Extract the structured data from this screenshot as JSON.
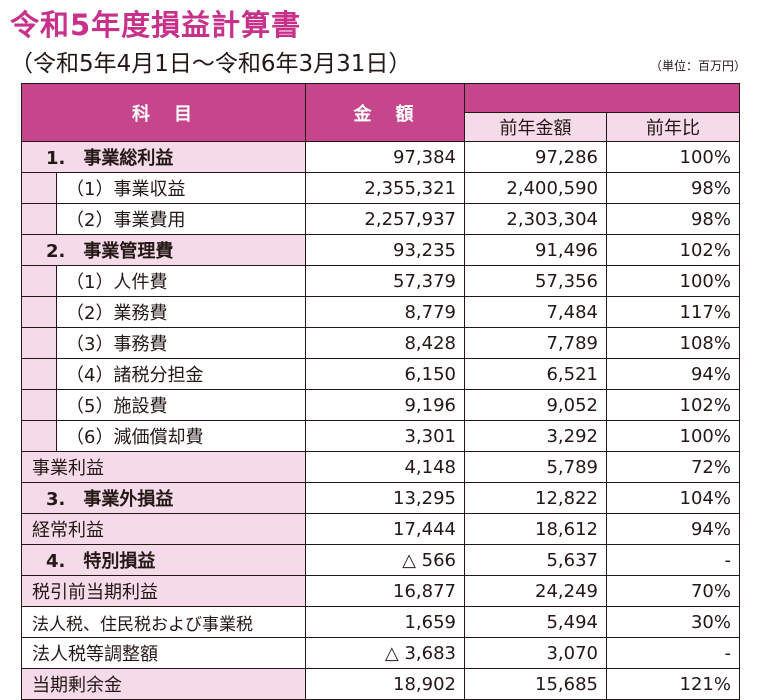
{
  "title": "令和5年度損益計算書",
  "period": "（令和5年4月1日～令和6年3月31日）",
  "unit": "（単位：百万円）",
  "header": {
    "item": "科　目",
    "amount": "金　額",
    "prev_amount": "前年金額",
    "ratio": "前年比"
  },
  "rows": [
    {
      "label": "1.　事業総利益",
      "amount": "97,384",
      "prev": "97,286",
      "ratio": "100%"
    },
    {
      "label": "（1）事業収益",
      "amount": "2,355,321",
      "prev": "2,400,590",
      "ratio": "98%"
    },
    {
      "label": "（2）事業費用",
      "amount": "2,257,937",
      "prev": "2,303,304",
      "ratio": "98%"
    },
    {
      "label": "2.　事業管理費",
      "amount": "93,235",
      "prev": "91,496",
      "ratio": "102%"
    },
    {
      "label": "（1）人件費",
      "amount": "57,379",
      "prev": "57,356",
      "ratio": "100%"
    },
    {
      "label": "（2）業務費",
      "amount": "8,779",
      "prev": "7,484",
      "ratio": "117%"
    },
    {
      "label": "（3）事務費",
      "amount": "8,428",
      "prev": "7,789",
      "ratio": "108%"
    },
    {
      "label": "（4）諸税分担金",
      "amount": "6,150",
      "prev": "6,521",
      "ratio": "94%"
    },
    {
      "label": "（5）施設費",
      "amount": "9,196",
      "prev": "9,052",
      "ratio": "102%"
    },
    {
      "label": "（6）減価償却費",
      "amount": "3,301",
      "prev": "3,292",
      "ratio": "100%"
    },
    {
      "label": "事業利益",
      "amount": "4,148",
      "prev": "5,789",
      "ratio": "72%"
    },
    {
      "label": "3.　事業外損益",
      "amount": "13,295",
      "prev": "12,822",
      "ratio": "104%"
    },
    {
      "label": "経常利益",
      "amount": "17,444",
      "prev": "18,612",
      "ratio": "94%"
    },
    {
      "label": "4.　特別損益",
      "amount": "△ 566",
      "prev": "5,637",
      "ratio": "-"
    },
    {
      "label": "税引前当期利益",
      "amount": "16,877",
      "prev": "24,249",
      "ratio": "70%"
    },
    {
      "label": "法人税、住民税および事業税",
      "amount": "1,659",
      "prev": "5,494",
      "ratio": "30%"
    },
    {
      "label": "法人税等調整額",
      "amount": "△ 3,683",
      "prev": "3,070",
      "ratio": "-"
    },
    {
      "label": "当期剰余金",
      "amount": "18,902",
      "prev": "15,685",
      "ratio": "121%"
    }
  ],
  "colors": {
    "title": "#c8318a",
    "header_bg": "#c5468b",
    "row_tint": "#f5dbe9"
  }
}
